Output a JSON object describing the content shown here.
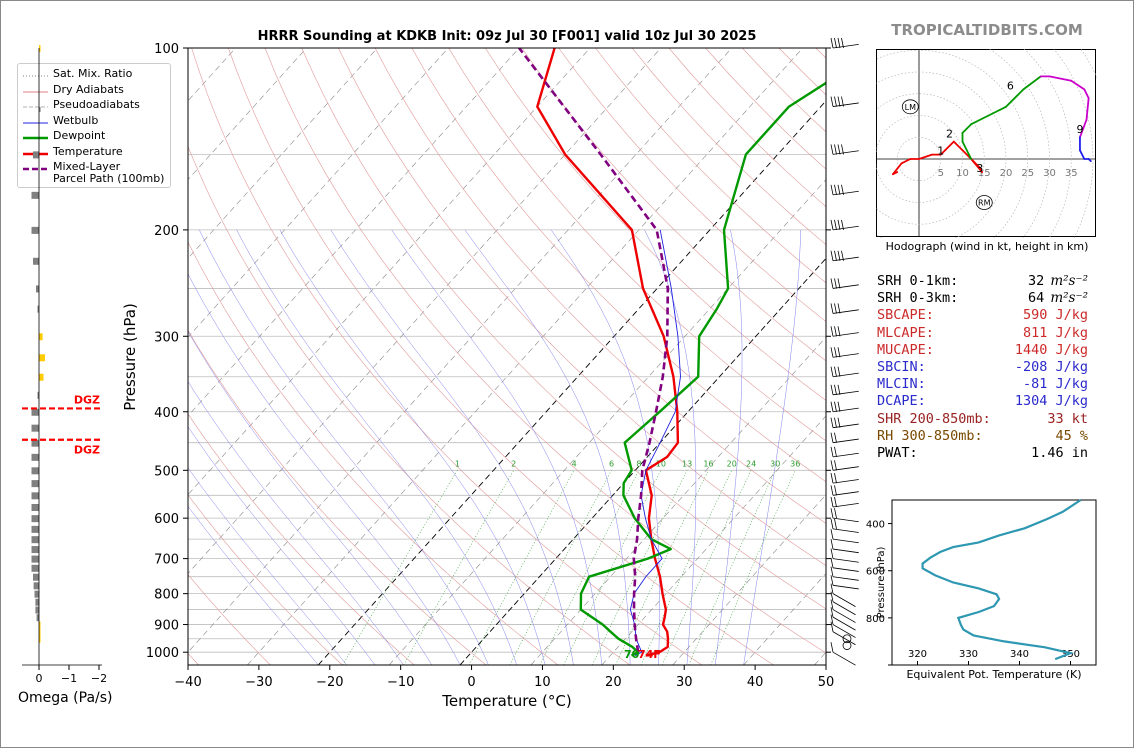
{
  "header": {
    "title": "HRRR Sounding at KDKB Init: 09z Jul 30 [F001] valid 10z Jul 30 2025",
    "brand": "TROPICALTIDBITS.COM"
  },
  "legend": {
    "items": [
      {
        "label": "Sat. Mix. Ratio",
        "color": "#808080",
        "style": "dotted"
      },
      {
        "label": "Dry Adiabats",
        "color": "#e08080",
        "style": "solid"
      },
      {
        "label": "Pseudoadiabats",
        "color": "#b0b0b0",
        "style": "dashed"
      },
      {
        "label": "Wetbulb",
        "color": "#2020e0",
        "style": "solid"
      },
      {
        "label": "Dewpoint",
        "color": "#009900",
        "style": "thick"
      },
      {
        "label": "Temperature",
        "color": "#ee0000",
        "style": "thick"
      },
      {
        "label": "Mixed-Layer",
        "label2": "Parcel Path (100mb)",
        "color": "#800080",
        "style": "dashed-thick"
      }
    ]
  },
  "surface": {
    "dewpoint_label": "70",
    "temperature_label": "74F"
  },
  "colors": {
    "temperature": "#ee0000",
    "dewpoint": "#009900",
    "wetbulb": "#2020e0",
    "parcel": "#800080",
    "theta_e": "#2e98b2",
    "dgz": "#ff0000",
    "omega": "#808080",
    "omega_pos": "#ffcc00"
  },
  "indices": [
    {
      "label": "SRH 0-1km:",
      "value": "32",
      "unit": "m²s⁻²",
      "color": "#000000"
    },
    {
      "label": "SRH 0-3km:",
      "value": "64",
      "unit": "m²s⁻²",
      "color": "#000000"
    },
    {
      "label": "SBCAPE:",
      "value": "590 J/kg",
      "color": "#cc2a2a"
    },
    {
      "label": "MLCAPE:",
      "value": "811 J/kg",
      "color": "#cc2a2a"
    },
    {
      "label": "MUCAPE:",
      "value": "1440 J/kg",
      "color": "#cc2a2a"
    },
    {
      "label": "SBCIN:",
      "value": "-208 J/kg",
      "color": "#2a2acc"
    },
    {
      "label": "MLCIN:",
      "value": "-81 J/kg",
      "color": "#2a2acc"
    },
    {
      "label": "DCAPE:",
      "value": "1304 J/kg",
      "color": "#2a2acc"
    },
    {
      "label": "SHR 200-850mb:",
      "value": "33 kt",
      "color": "#992222"
    },
    {
      "label": "RH 300-850mb:",
      "value": "45 %",
      "color": "#7a4a00"
    },
    {
      "label": "PWAT:",
      "value": "1.46 in",
      "color": "#000000"
    }
  ],
  "hodograph": {
    "caption": "Hodograph (wind in kt, height in km)",
    "ring_labels": [
      "5",
      "10",
      "15",
      "20",
      "25",
      "30",
      "35"
    ],
    "height_labels": [
      "1",
      "2",
      "3",
      "6",
      "9"
    ],
    "motion_labels": [
      "LM",
      "RM"
    ]
  },
  "omega": {
    "title": "Omega (Pa/s)",
    "tick_labels": [
      "0",
      "−1",
      "−2"
    ],
    "dgz_label": "DGZ"
  },
  "chart_data": [
    {
      "type": "line",
      "title": "HRRR Sounding at KDKB Init: 09z Jul 30 [F001] valid 10z Jul 30 2025",
      "xlabel": "Temperature (°C)",
      "ylabel": "Pressure (hPa)",
      "xlim": [
        -40,
        50
      ],
      "ylim": [
        1050,
        100
      ],
      "y_scale": "log",
      "x_ticks": [
        -40,
        -30,
        -20,
        -10,
        0,
        10,
        20,
        30,
        40,
        50
      ],
      "y_ticks": [
        100,
        200,
        300,
        400,
        500,
        600,
        700,
        800,
        900,
        1000
      ],
      "mixing_ratio_labels": [
        "1",
        "2",
        "4",
        "6",
        "8",
        "10",
        "13",
        "16",
        "20",
        "24",
        "30",
        "36"
      ],
      "series": [
        {
          "name": "Temperature",
          "p": [
            1013,
            1000,
            980,
            950,
            925,
            900,
            875,
            850,
            800,
            750,
            700,
            650,
            600,
            550,
            500,
            475,
            450,
            400,
            350,
            300,
            250,
            200,
            150,
            125,
            100
          ],
          "t": [
            25,
            26.5,
            27,
            26,
            25,
            23.5,
            22.8,
            22,
            19.5,
            17,
            14,
            11,
            8,
            5.5,
            1.5,
            2.8,
            2.5,
            -1.5,
            -6.5,
            -13,
            -22,
            -31,
            -50,
            -60,
            -65
          ]
        },
        {
          "name": "Dewpoint",
          "p": [
            1013,
            1000,
            980,
            950,
            925,
            900,
            850,
            800,
            750,
            700,
            675,
            650,
            600,
            550,
            525,
            500,
            450,
            400,
            350,
            300,
            270,
            250,
            200,
            150,
            125,
            100
          ],
          "t": [
            23,
            23.5,
            22,
            19,
            17,
            15,
            10,
            8,
            7,
            13,
            15,
            11,
            6,
            1.5,
            0,
            -0.5,
            -5,
            -4,
            -3,
            -8,
            -9,
            -10,
            -18,
            -24.5,
            -24.5,
            -19
          ]
        },
        {
          "name": "Wetbulb",
          "p": [
            1013,
            1000,
            950,
            900,
            850,
            800,
            750,
            700,
            650,
            600,
            550,
            500,
            450,
            400,
            350,
            300,
            250,
            200
          ],
          "t": [
            23.5,
            24,
            21.5,
            19.5,
            17,
            15.5,
            15,
            15,
            11,
            7.5,
            4,
            1.5,
            0,
            -1.8,
            -5.5,
            -11,
            -18,
            -27
          ]
        },
        {
          "name": "Mixed-Layer Parcel Path (100mb)",
          "p": [
            1000,
            950,
            925,
            900,
            850,
            800,
            750,
            700,
            650,
            600,
            550,
            500,
            450,
            400,
            350,
            300,
            250,
            200,
            150,
            100
          ],
          "t": [
            23.5,
            21.5,
            20.5,
            19.5,
            17.5,
            15.5,
            13.5,
            11,
            9,
            6.5,
            4,
            1,
            -1.5,
            -4.5,
            -8,
            -12.5,
            -18.5,
            -27.5,
            -45,
            -70
          ]
        }
      ]
    },
    {
      "type": "line",
      "title": "",
      "xlabel": "Equivalent Pot. Temperature (K)",
      "ylabel": "Pressure (hPa)",
      "xlim": [
        315,
        355
      ],
      "ylim": [
        1000,
        300
      ],
      "x_ticks": [
        320,
        330,
        340,
        350
      ],
      "y_ticks": [
        400,
        600,
        800
      ],
      "series": [
        {
          "name": "theta-e",
          "p": [
            975,
            950,
            925,
            900,
            875,
            850,
            830,
            800,
            775,
            750,
            720,
            700,
            675,
            650,
            620,
            590,
            570,
            545,
            520,
            500,
            480,
            450,
            420,
            380,
            350,
            300
          ],
          "theta_e": [
            347,
            350,
            345,
            337,
            331,
            329,
            328.5,
            328,
            332,
            335,
            336,
            335.5,
            332,
            327,
            323.5,
            321,
            321,
            322.5,
            324.5,
            327,
            332,
            336,
            341,
            345.5,
            348.5,
            352
          ]
        }
      ]
    },
    {
      "type": "line",
      "title": "Hodograph (wind in kt, height in km)",
      "xlim": [
        -7,
        40
      ],
      "ylim": [
        -18,
        26
      ],
      "series": [
        {
          "name": "wind",
          "u": [
            -5,
            -6,
            -4,
            -2,
            0,
            3,
            5,
            6,
            8,
            10,
            12,
            14,
            14.5,
            12,
            10,
            10,
            12,
            16,
            20,
            24,
            28,
            30,
            35,
            38,
            39,
            38.5,
            37,
            37,
            38,
            39,
            39.5
          ],
          "v": [
            -3,
            -3.5,
            -1,
            0,
            0,
            1,
            1,
            2,
            4,
            2,
            0,
            -2,
            -3,
            0,
            4,
            6,
            8,
            10,
            12,
            16,
            19,
            19,
            18,
            16,
            14,
            9,
            5,
            2,
            0,
            0,
            -0.5
          ]
        }
      ]
    },
    {
      "type": "bar",
      "title": "Omega (Pa/s)",
      "xlim": [
        0.3,
        -2.3
      ],
      "x_ticks": [
        0,
        -1,
        -2
      ],
      "p": [
        100,
        150,
        175,
        200,
        225,
        250,
        270,
        300,
        325,
        350,
        375,
        400,
        425,
        450,
        475,
        500,
        525,
        550,
        575,
        600,
        625,
        650,
        675,
        700,
        725,
        750,
        775,
        800,
        825,
        850,
        875,
        900,
        925,
        950
      ],
      "values": [
        0.05,
        -0.2,
        -0.25,
        -0.25,
        -0.2,
        -0.1,
        -0.05,
        0.12,
        0.2,
        0.15,
        -0.05,
        -0.25,
        -0.25,
        -0.25,
        -0.25,
        -0.25,
        -0.25,
        -0.25,
        -0.25,
        -0.25,
        -0.25,
        -0.25,
        -0.25,
        -0.25,
        -0.25,
        -0.2,
        -0.18,
        -0.15,
        -0.12,
        -0.12,
        -0.08,
        0.03,
        0.02,
        0.01
      ],
      "dgz_levels": [
        395,
        445
      ]
    }
  ]
}
